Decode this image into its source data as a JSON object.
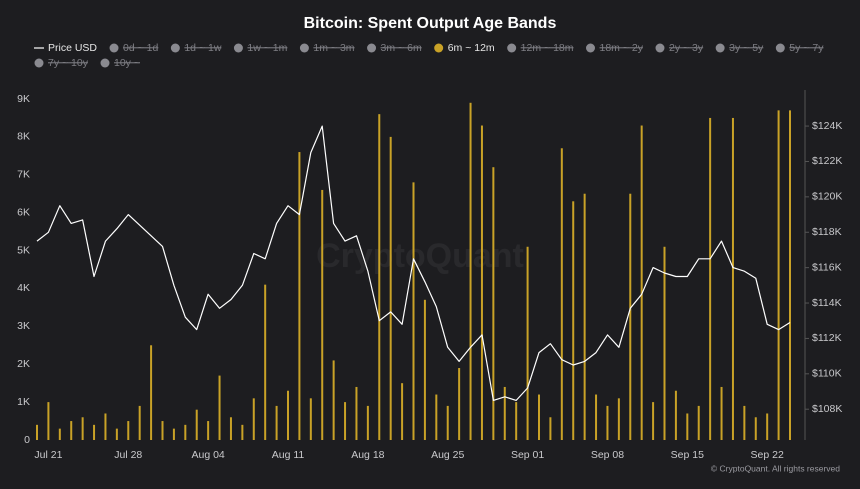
{
  "chart_data": {
    "type": "bar",
    "title": "Bitcoin: Spent Output Age Bands",
    "watermark": "CryptoQuant",
    "footer": "© CryptoQuant. All rights reserved",
    "categories": [
      null,
      "Jul 21",
      null,
      null,
      null,
      null,
      null,
      null,
      "Jul 28",
      null,
      null,
      null,
      null,
      null,
      null,
      "Aug 04",
      null,
      null,
      null,
      null,
      null,
      null,
      "Aug 11",
      null,
      null,
      null,
      null,
      null,
      null,
      "Aug 18",
      null,
      null,
      null,
      null,
      null,
      null,
      "Aug 25",
      null,
      null,
      null,
      null,
      null,
      null,
      "Sep 01",
      null,
      null,
      null,
      null,
      null,
      null,
      "Sep 08",
      null,
      null,
      null,
      null,
      null,
      null,
      "Sep 15",
      null,
      null,
      null,
      null,
      null,
      null,
      "Sep 22",
      null,
      null
    ],
    "series": [
      {
        "name": "Price USD",
        "type": "line",
        "axis": "y2",
        "color": "#ffffff",
        "values": [
          117500,
          118000,
          119500,
          118500,
          118700,
          115500,
          117500,
          118200,
          119000,
          118400,
          117800,
          117200,
          115000,
          113200,
          112500,
          114500,
          113700,
          114200,
          115000,
          116800,
          116500,
          118500,
          119500,
          119000,
          122500,
          124000,
          118500,
          117500,
          117800,
          115800,
          113000,
          113500,
          112800,
          116500,
          115200,
          113800,
          111500,
          110700,
          111500,
          112200,
          108500,
          108700,
          108500,
          109200,
          111200,
          111700,
          110800,
          110500,
          110700,
          111200,
          112200,
          111500,
          113700,
          114500,
          116000,
          115700,
          115500,
          115500,
          116500,
          116500,
          117500,
          116000,
          115800,
          115400,
          112800,
          112500,
          112900
        ]
      },
      {
        "name": "6m ~ 12m",
        "type": "bar",
        "axis": "y",
        "color": "#c9a227",
        "values": [
          400,
          1000,
          300,
          500,
          600,
          400,
          700,
          300,
          500,
          900,
          2500,
          500,
          300,
          400,
          800,
          500,
          1700,
          600,
          400,
          1100,
          4100,
          900,
          1300,
          7600,
          1100,
          6600,
          2100,
          1000,
          1400,
          900,
          8600,
          8000,
          1500,
          6800,
          3700,
          1200,
          900,
          1900,
          8900,
          8300,
          7200,
          1400,
          1000,
          5100,
          1200,
          600,
          7700,
          6300,
          6500,
          1200,
          900,
          1100,
          6500,
          8300,
          1000,
          5100,
          1300,
          700,
          900,
          8500,
          1400,
          8500,
          900,
          600,
          700,
          8700,
          8700
        ]
      }
    ],
    "inactive_series": [
      {
        "name": "0d ~ 1d",
        "color": "#8a8a90"
      },
      {
        "name": "1d ~ 1w",
        "color": "#8a8a90"
      },
      {
        "name": "1w ~ 1m",
        "color": "#8a8a90"
      },
      {
        "name": "1m ~ 3m",
        "color": "#8a8a90"
      },
      {
        "name": "3m ~ 6m",
        "color": "#8a8a90"
      },
      {
        "name": "12m ~ 18m",
        "color": "#8a8a90"
      },
      {
        "name": "18m ~ 2y",
        "color": "#8a8a90"
      },
      {
        "name": "2y ~ 3y",
        "color": "#8a8a90"
      },
      {
        "name": "3y ~ 5y",
        "color": "#8a8a90"
      },
      {
        "name": "5y ~ 7y",
        "color": "#8a8a90"
      },
      {
        "name": "7y ~ 10y",
        "color": "#8a8a90"
      },
      {
        "name": "10y ~",
        "color": "#8a8a90"
      }
    ],
    "ylim": [
      0,
      9000
    ],
    "yticks": [
      0,
      {
        "value": 1000,
        "label": "1K"
      },
      {
        "value": 2000,
        "label": "2K"
      },
      {
        "value": 3000,
        "label": "3K"
      },
      {
        "value": 4000,
        "label": "4K"
      },
      {
        "value": 5000,
        "label": "5K"
      },
      {
        "value": 6000,
        "label": "6K"
      },
      {
        "value": 7000,
        "label": "7K"
      },
      {
        "value": 8000,
        "label": "8K"
      },
      {
        "value": 9000,
        "label": "9K"
      }
    ],
    "y2lim": [
      106260,
      125530
    ],
    "y2ticks": [
      {
        "value": 108000,
        "label": "$108K"
      },
      {
        "value": 110000,
        "label": "$110K"
      },
      {
        "value": 112000,
        "label": "$112K"
      },
      {
        "value": 114000,
        "label": "$114K"
      },
      {
        "value": 116000,
        "label": "$116K"
      },
      {
        "value": 118000,
        "label": "$118K"
      },
      {
        "value": 120000,
        "label": "$120K"
      },
      {
        "value": 122000,
        "label": "$122K"
      },
      {
        "value": 124000,
        "label": "$124K"
      }
    ],
    "grid": false
  }
}
